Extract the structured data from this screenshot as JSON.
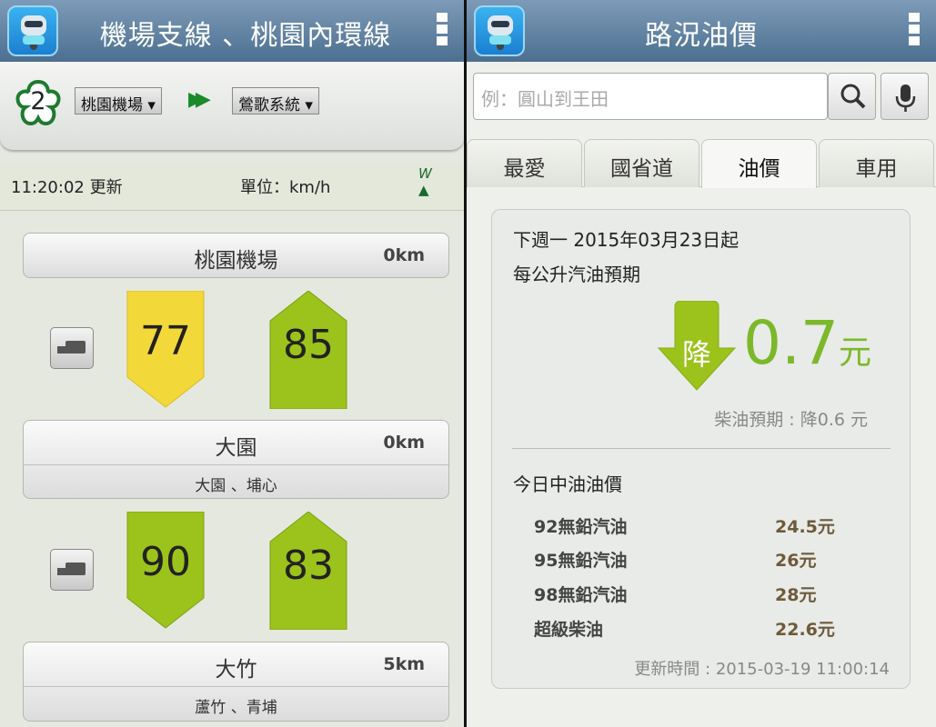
{
  "left": {
    "title": "機場支線 、桃園內環線",
    "route_number": "2",
    "from": "桃園機場 ▾",
    "to": "鶯歌系統 ▾",
    "updated": "11:20:02 更新",
    "unit": "單位：km/h",
    "compass": "W",
    "stations": [
      {
        "name": "桃園機場",
        "km": "0km",
        "sub": ""
      },
      {
        "name": "大園",
        "km": "0km",
        "sub": "大園 、埔心"
      },
      {
        "name": "大竹",
        "km": "5km",
        "sub": "蘆竹 、青埔"
      }
    ],
    "segments": [
      {
        "down_speed": "77",
        "up_speed": "85",
        "down_color": "#f3d83a",
        "up_color": "#9cc21c"
      },
      {
        "down_speed": "90",
        "up_speed": "83",
        "down_color": "#9cc21c",
        "up_color": "#9cc21c"
      }
    ]
  },
  "right": {
    "title": "路況油價",
    "search_placeholder": "例：圓山到王田",
    "tabs": [
      "最愛",
      "國省道",
      "油價",
      "車用"
    ],
    "active_tab": "油價",
    "card": {
      "line1": "下週一 2015年03月23日起",
      "line2": "每公升汽油預期",
      "arrow_label": "降",
      "change_value": "0.7",
      "change_unit": "元",
      "diesel": "柴油預期 : 降0.6 元",
      "today_title": "今日中油油價",
      "prices": [
        {
          "name": "92無鉛汽油",
          "value": "24.5元"
        },
        {
          "name": "95無鉛汽油",
          "value": "26元"
        },
        {
          "name": "98無鉛汽油",
          "value": "28元"
        },
        {
          "name": "超級柴油",
          "value": "22.6元"
        }
      ],
      "updated": "更新時間 : 2015-03-19 11:00:14"
    },
    "accent": "#7cb82a"
  }
}
